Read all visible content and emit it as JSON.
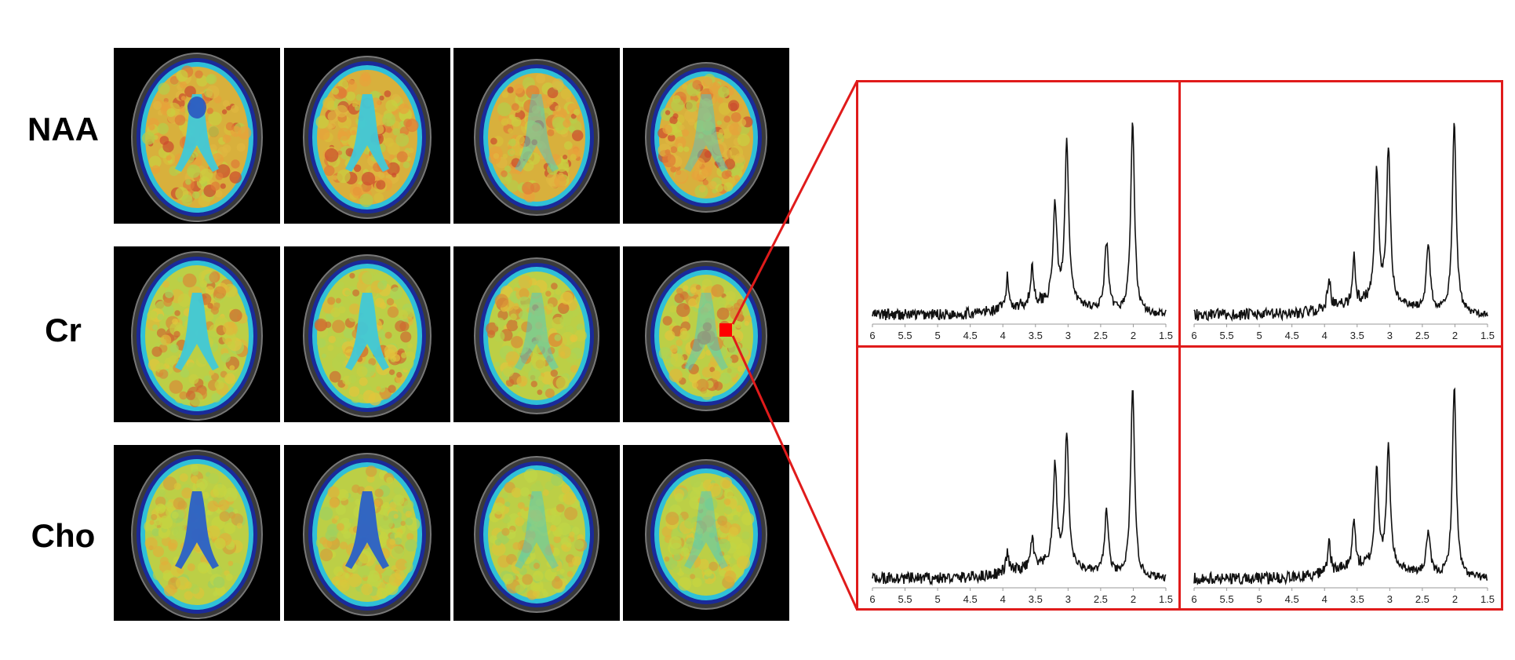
{
  "rows": [
    {
      "label": "NAA",
      "tone": "warm"
    },
    {
      "label": "Cr",
      "tone": "mixed"
    },
    {
      "label": "Cho",
      "tone": "cool"
    }
  ],
  "colors": {
    "frame": "#e01b1b",
    "roi_marker": "#ff0000",
    "spectrum_line": "#111111",
    "tile_background": "#000000"
  },
  "colormap": "jet",
  "selected_voxel": {
    "row": "Cr",
    "slice": 4
  },
  "chart_data": [
    {
      "type": "line",
      "xlim": [
        6,
        1.5
      ],
      "reversed_x": true,
      "tick_labels": [
        "6",
        "5.5",
        "5",
        "4.5",
        "4",
        "3.5",
        "3",
        "2.5",
        "2",
        "1.5"
      ],
      "tick_values": [
        6,
        5.5,
        5,
        4.5,
        4,
        3.5,
        3,
        2.5,
        2,
        1.5
      ],
      "peaks": [
        {
          "ppm": 2.01,
          "height": 1.0
        },
        {
          "ppm": 3.02,
          "height": 0.85
        },
        {
          "ppm": 3.2,
          "height": 0.5
        },
        {
          "ppm": 2.41,
          "height": 0.35
        },
        {
          "ppm": 3.55,
          "height": 0.2
        },
        {
          "ppm": 3.93,
          "height": 0.16
        }
      ]
    },
    {
      "type": "line",
      "xlim": [
        6,
        1.5
      ],
      "reversed_x": true,
      "tick_labels": [
        "6",
        "5.5",
        "5",
        "4.5",
        "4",
        "3.5",
        "3",
        "2.5",
        "2",
        "1.5"
      ],
      "tick_values": [
        6,
        5.5,
        5,
        4.5,
        4,
        3.5,
        3,
        2.5,
        2,
        1.5
      ],
      "peaks": [
        {
          "ppm": 2.01,
          "height": 1.0
        },
        {
          "ppm": 3.02,
          "height": 0.8
        },
        {
          "ppm": 3.2,
          "height": 0.68
        },
        {
          "ppm": 2.41,
          "height": 0.35
        },
        {
          "ppm": 3.55,
          "height": 0.25
        },
        {
          "ppm": 3.93,
          "height": 0.17
        }
      ]
    },
    {
      "type": "line",
      "xlim": [
        6,
        1.5
      ],
      "reversed_x": true,
      "tick_labels": [
        "6",
        "5.5",
        "5",
        "4.5",
        "4",
        "3.5",
        "3",
        "2.5",
        "2",
        "1.5"
      ],
      "tick_values": [
        6,
        5.5,
        5,
        4.5,
        4,
        3.5,
        3,
        2.5,
        2,
        1.5
      ],
      "peaks": [
        {
          "ppm": 2.01,
          "height": 1.0
        },
        {
          "ppm": 3.02,
          "height": 0.7
        },
        {
          "ppm": 3.2,
          "height": 0.52
        },
        {
          "ppm": 2.41,
          "height": 0.33
        },
        {
          "ppm": 3.55,
          "height": 0.16
        },
        {
          "ppm": 3.93,
          "height": 0.1
        }
      ]
    },
    {
      "type": "line",
      "xlim": [
        6,
        1.5
      ],
      "reversed_x": true,
      "tick_labels": [
        "6",
        "5.5",
        "5",
        "4.5",
        "4",
        "3.5",
        "3",
        "2.5",
        "2",
        "1.5"
      ],
      "tick_values": [
        6,
        5.5,
        5,
        4.5,
        4,
        3.5,
        3,
        2.5,
        2,
        1.5
      ],
      "peaks": [
        {
          "ppm": 2.01,
          "height": 1.0
        },
        {
          "ppm": 3.02,
          "height": 0.62
        },
        {
          "ppm": 3.2,
          "height": 0.5
        },
        {
          "ppm": 2.41,
          "height": 0.22
        },
        {
          "ppm": 3.55,
          "height": 0.27
        },
        {
          "ppm": 3.93,
          "height": 0.17
        }
      ]
    }
  ]
}
